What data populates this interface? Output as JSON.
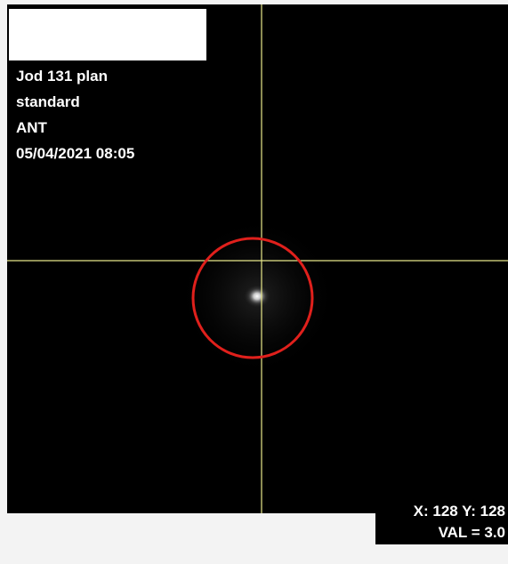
{
  "info": {
    "study": "Jod 131 plan",
    "protocol": "standard",
    "view": "ANT",
    "datetime": "05/04/2021 08:05"
  },
  "cursor": {
    "position": "X: 128 Y: 128",
    "value": "VAL = 3.0"
  }
}
